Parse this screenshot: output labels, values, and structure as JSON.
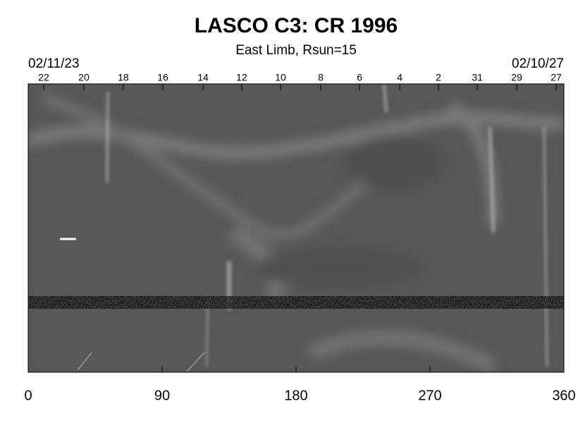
{
  "chart_data": {
    "type": "synoptic-map",
    "title": "LASCO C3: CR 1996",
    "subtitle": "East Limb, Rsun=15",
    "start_date": "02/11/23",
    "end_date": "02/10/27",
    "xlim": [
      0,
      360
    ],
    "xticks": [
      0,
      90,
      180,
      270,
      360
    ],
    "top_ticks": [
      {
        "value": 10.4,
        "label": "22"
      },
      {
        "value": 37.4,
        "label": "20"
      },
      {
        "value": 63.9,
        "label": "18"
      },
      {
        "value": 90.5,
        "label": "16"
      },
      {
        "value": 117.5,
        "label": "14"
      },
      {
        "value": 143.5,
        "label": "12"
      },
      {
        "value": 169.6,
        "label": "10"
      },
      {
        "value": 196.6,
        "label": "8"
      },
      {
        "value": 222.7,
        "label": "6"
      },
      {
        "value": 249.7,
        "label": "4"
      },
      {
        "value": 275.7,
        "label": "2"
      },
      {
        "value": 301.8,
        "label": "31"
      },
      {
        "value": 328.3,
        "label": "29"
      },
      {
        "value": 354.8,
        "label": "27"
      }
    ]
  }
}
